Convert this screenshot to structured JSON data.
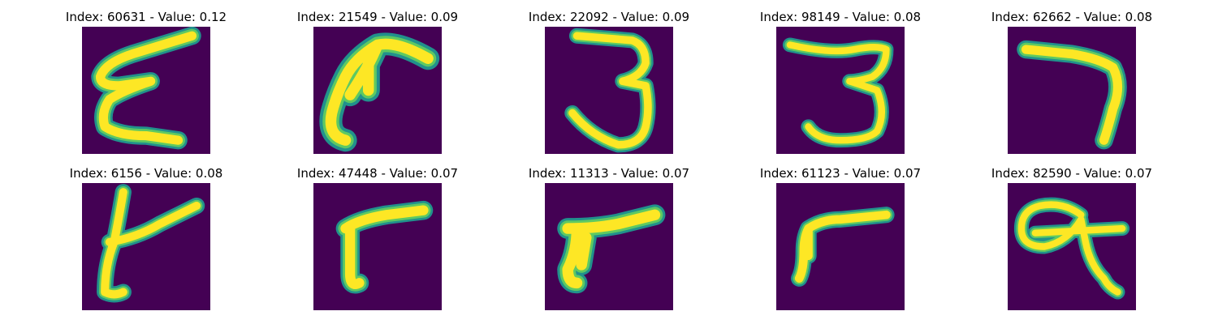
{
  "colors": {
    "background": "#440154",
    "stroke_outer": "#21918c",
    "stroke_mid": "#5ec962",
    "stroke_core": "#fde725"
  },
  "samples": [
    {
      "title": "Index: 60631 - Value: 0.12",
      "glyph": "E"
    },
    {
      "title": "Index: 21549 - Value: 0.09",
      "glyph": "r"
    },
    {
      "title": "Index: 22092 - Value: 0.09",
      "glyph": "3"
    },
    {
      "title": "Index: 98149 - Value: 0.08",
      "glyph": "3"
    },
    {
      "title": "Index: 62662 - Value: 0.08",
      "glyph": "7"
    },
    {
      "title": "Index: 6156 - Value: 0.08",
      "glyph": "t"
    },
    {
      "title": "Index: 47448 - Value: 0.07",
      "glyph": "r"
    },
    {
      "title": "Index: 11313 - Value: 0.07",
      "glyph": "r"
    },
    {
      "title": "Index: 61123 - Value: 0.07",
      "glyph": "r"
    },
    {
      "title": "Index: 82590 - Value: 0.07",
      "glyph": "q"
    }
  ]
}
